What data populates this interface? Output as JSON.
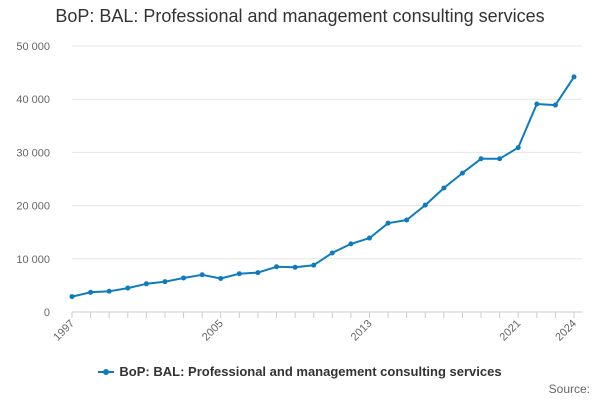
{
  "colors": {
    "series": "#0e7bbf",
    "grid": "#e6e6e6",
    "axis": "#cccccc"
  },
  "source_label": "Source:",
  "chart_data": {
    "type": "line",
    "title": "BoP: BAL: Professional and management consulting services",
    "xlabel": "",
    "ylabel": "",
    "ylim": [
      0,
      50000
    ],
    "yticks": [
      0,
      10000,
      20000,
      30000,
      40000,
      50000
    ],
    "ytick_labels": [
      "0",
      "10 000",
      "20 000",
      "30 000",
      "40 000",
      "50 000"
    ],
    "xlim": [
      1997,
      2024
    ],
    "xtick_labels": [
      "1997",
      "2005",
      "2013",
      "2021",
      "2024"
    ],
    "grid": true,
    "legend": "bottom",
    "series": [
      {
        "name": "BoP: BAL: Professional and management consulting services",
        "x": [
          1997,
          1998,
          1999,
          2000,
          2001,
          2002,
          2003,
          2004,
          2005,
          2006,
          2007,
          2008,
          2009,
          2010,
          2011,
          2012,
          2013,
          2014,
          2015,
          2016,
          2017,
          2018,
          2019,
          2020,
          2021,
          2022,
          2023,
          2024
        ],
        "values": [
          2900,
          3700,
          3900,
          4500,
          5300,
          5700,
          6400,
          7000,
          6300,
          7200,
          7400,
          8500,
          8400,
          8800,
          11100,
          12800,
          13900,
          16700,
          17300,
          20100,
          23300,
          26100,
          28800,
          28800,
          30900,
          39100,
          38900,
          44200
        ]
      }
    ]
  }
}
